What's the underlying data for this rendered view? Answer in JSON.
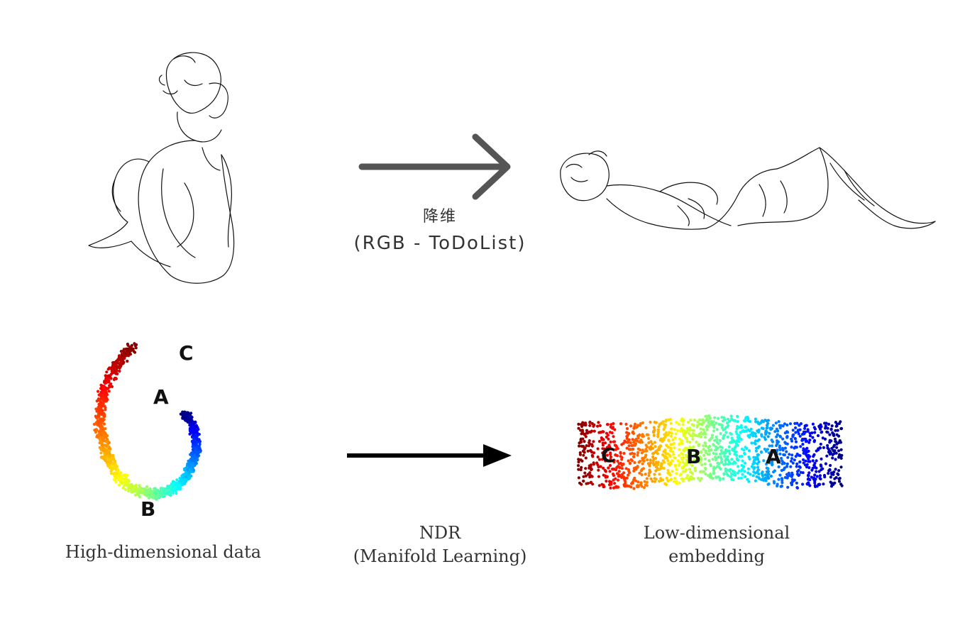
{
  "top": {
    "label_cn": "降维",
    "label_rgb": "(RGB - ToDoList)"
  },
  "bottom": {
    "caption_high": "High-dimensional data",
    "caption_ndr_line1": "NDR",
    "caption_ndr_line2": "(Manifold Learning)",
    "caption_low_line1": "Low-dimensional",
    "caption_low_line2": "embedding",
    "high_labels": {
      "a": "A",
      "b": "B",
      "c": "C"
    },
    "low_labels": {
      "a": "A",
      "b": "B",
      "c": "C"
    }
  },
  "colors": {
    "arrow_top": "#555555",
    "arrow_bottom": "#000000",
    "colormap": "jet"
  }
}
